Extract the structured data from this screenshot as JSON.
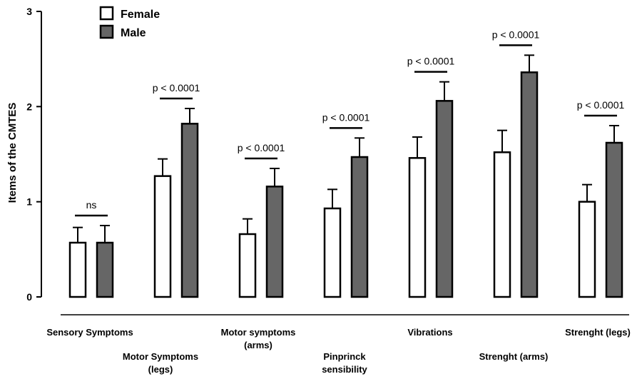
{
  "chart_data": {
    "type": "bar",
    "ylabel": "Items of the CMTES",
    "ylim": [
      0,
      3
    ],
    "yticks": [
      0,
      1,
      2,
      3
    ],
    "categories": [
      [
        "Sensory Symptoms"
      ],
      [
        "Motor Symptoms",
        "(legs)"
      ],
      [
        "Motor symptoms",
        "(arms)"
      ],
      [
        "Pinprinck",
        "sensibility"
      ],
      [
        "Vibrations"
      ],
      [
        "Strenght (arms)"
      ],
      [
        "Strenght (legs)"
      ]
    ],
    "series": [
      {
        "name": "Female",
        "color": "#ffffff",
        "values": [
          0.57,
          1.27,
          0.66,
          0.93,
          1.46,
          1.52,
          1.0
        ],
        "errors": [
          0.16,
          0.18,
          0.16,
          0.2,
          0.22,
          0.23,
          0.18
        ]
      },
      {
        "name": "Male",
        "color": "#666666",
        "values": [
          0.57,
          1.82,
          1.16,
          1.47,
          2.06,
          2.36,
          1.62
        ],
        "errors": [
          0.18,
          0.16,
          0.19,
          0.2,
          0.2,
          0.18,
          0.18
        ]
      }
    ],
    "significance": [
      "ns",
      "p < 0.0001",
      "p < 0.0001",
      "p < 0.0001",
      "p < 0.0001",
      "p < 0.0001",
      "p < 0.0001"
    ],
    "legend_position": "top-left",
    "grid": false
  }
}
